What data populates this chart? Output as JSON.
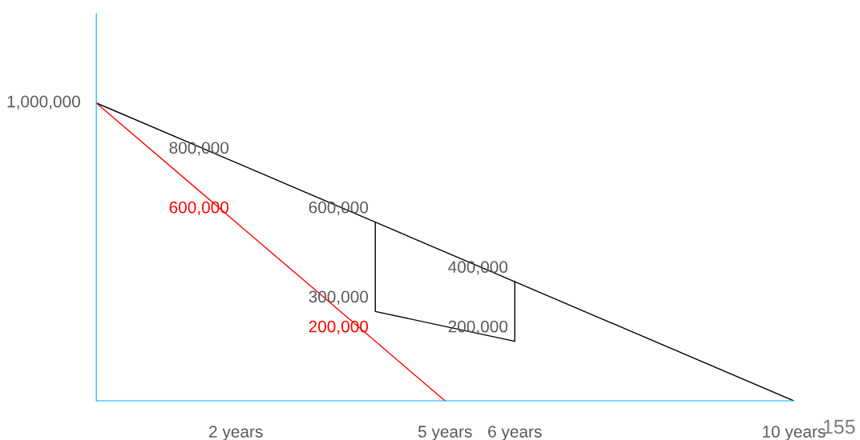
{
  "chart_data": {
    "type": "line",
    "series": [
      {
        "color": "#000000",
        "x": [
          0,
          2,
          4,
          6,
          10
        ],
        "values": [
          1000000,
          800000,
          600000,
          400000,
          0
        ],
        "value_labels": [
          "1,000,000",
          "800,000",
          "600,000",
          "400,000",
          null
        ]
      },
      {
        "color": "#ff0000",
        "x": [
          0,
          2,
          4,
          5
        ],
        "values": [
          1000000,
          600000,
          200000,
          0
        ],
        "value_labels": [
          null,
          "600,000",
          "200,000",
          null
        ]
      },
      {
        "color": "#000000",
        "x": [
          4,
          4,
          6,
          6
        ],
        "values": [
          600000,
          300000,
          200000,
          400000
        ],
        "value_labels": [
          null,
          "300,000",
          "200,000",
          null
        ]
      }
    ],
    "xlim": [
      0,
      10
    ],
    "xticks": [
      {
        "value": 2,
        "label": "2 years"
      },
      {
        "value": 5,
        "label": "5 years"
      },
      {
        "value": 6,
        "label": "6 years"
      },
      {
        "value": 10,
        "label": "10 years"
      }
    ],
    "ylim": [
      0,
      1300000
    ],
    "tick_labels": "x",
    "grid": false,
    "marker": "none",
    "line_style": "solid",
    "annotations": [
      "155"
    ]
  }
}
